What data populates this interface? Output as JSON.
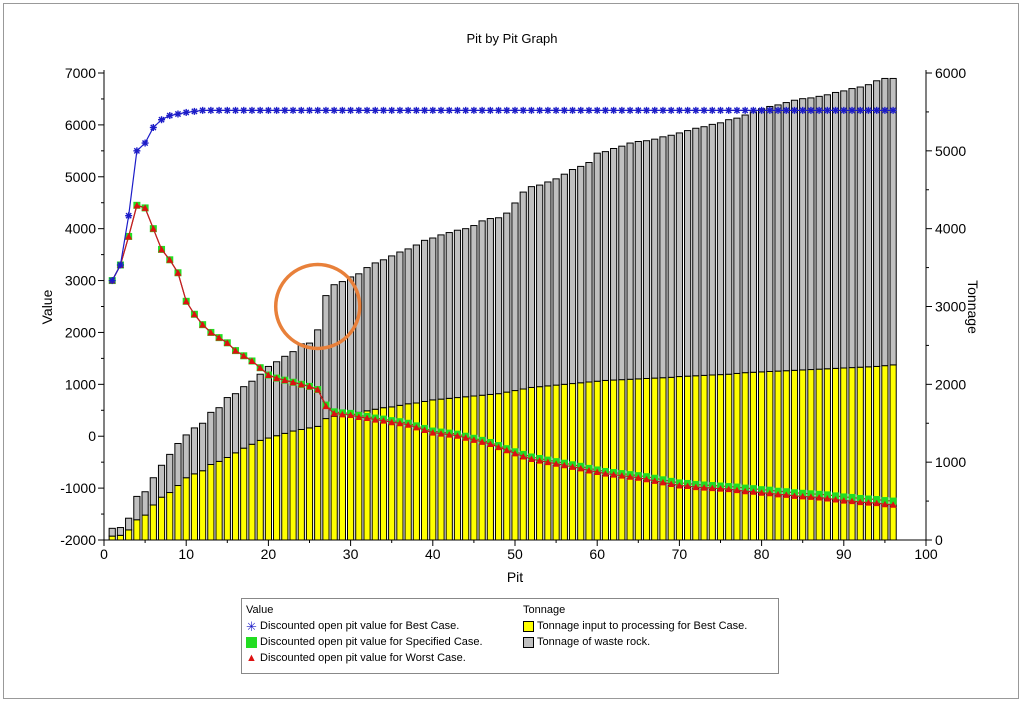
{
  "chart_data": {
    "type": "bar+line",
    "title": "Pit by Pit Graph",
    "xlabel": "Pit",
    "ylabel": "Value",
    "y2label": "Tonnage",
    "xlim": [
      0,
      100
    ],
    "ylim": [
      -2000,
      7000
    ],
    "y2lim": [
      0,
      6000
    ],
    "xticks": [
      "0",
      "10",
      "20",
      "30",
      "40",
      "50",
      "60",
      "70",
      "80",
      "90",
      "100"
    ],
    "yticks": [
      "-2000",
      "-1000",
      "0",
      "1000",
      "2000",
      "3000",
      "4000",
      "5000",
      "6000",
      "7000"
    ],
    "y2ticks": [
      "0",
      "1000",
      "2000",
      "3000",
      "4000",
      "5000",
      "6000"
    ],
    "grid": false,
    "legend_position": "bottom",
    "legend": {
      "value_heading": "Value",
      "tonnage_heading": "Tonnage",
      "best": "Discounted open pit value for Best Case.",
      "specified": "Discounted open pit value for Specified Case.",
      "worst": "Discounted open pit value for Worst Case.",
      "processing": "Tonnage input to processing for Best Case.",
      "waste": "Tonnage of waste rock."
    },
    "colors": {
      "best": "#1c1cc8",
      "specified": "#22dd22",
      "worst": "#dd1111",
      "processing": "#ffff00",
      "waste": "#c0c0c0",
      "annotation": "#e8803a"
    },
    "annotation": {
      "type": "circle",
      "pit": 26,
      "value": 2500
    },
    "pits_count": 96,
    "series": [
      {
        "name": "Discounted open pit value for Best Case.",
        "axis": "left",
        "type": "line",
        "marker": "star",
        "values": [
          3000,
          3300,
          4250,
          5500,
          5650,
          5950,
          6100,
          6180,
          6210,
          6240,
          6260,
          6280,
          6280,
          6280,
          6280,
          6280,
          6280,
          6280,
          6280,
          6280,
          6280,
          6280,
          6280,
          6280,
          6280,
          6280,
          6280,
          6280,
          6280,
          6280,
          6280,
          6280,
          6280,
          6280,
          6280,
          6280,
          6280,
          6280,
          6280,
          6280,
          6280,
          6280,
          6280,
          6280,
          6280,
          6280,
          6280,
          6280,
          6280,
          6280,
          6280,
          6280,
          6280,
          6280,
          6280,
          6280,
          6280,
          6280,
          6280,
          6280,
          6280,
          6280,
          6280,
          6280,
          6280,
          6280,
          6280,
          6280,
          6280,
          6280,
          6280,
          6280,
          6280,
          6280,
          6280,
          6280,
          6280,
          6280,
          6280,
          6280,
          6280,
          6280,
          6280,
          6280,
          6280,
          6280,
          6280,
          6280,
          6280,
          6280,
          6280,
          6280,
          6280,
          6280,
          6280,
          6280
        ]
      },
      {
        "name": "Discounted open pit value for Specified Case.",
        "axis": "left",
        "type": "line",
        "marker": "square",
        "values": [
          3000,
          3300,
          3850,
          4450,
          4400,
          4000,
          3600,
          3400,
          3150,
          2600,
          2350,
          2150,
          2000,
          1900,
          1800,
          1650,
          1550,
          1450,
          1320,
          1180,
          1120,
          1080,
          1040,
          1000,
          960,
          900,
          600,
          470,
          450,
          440,
          400,
          380,
          350,
          330,
          300,
          280,
          250,
          200,
          150,
          100,
          80,
          60,
          40,
          0,
          -40,
          -80,
          -120,
          -180,
          -240,
          -300,
          -350,
          -400,
          -430,
          -460,
          -490,
          -520,
          -550,
          -580,
          -620,
          -650,
          -680,
          -700,
          -720,
          -740,
          -760,
          -780,
          -810,
          -840,
          -870,
          -900,
          -910,
          -930,
          -940,
          -950,
          -960,
          -970,
          -980,
          -1000,
          -1010,
          -1030,
          -1040,
          -1060,
          -1070,
          -1090,
          -1100,
          -1110,
          -1120,
          -1130,
          -1150,
          -1170,
          -1180,
          -1200,
          -1210,
          -1220,
          -1240,
          -1250
        ]
      },
      {
        "name": "Discounted open pit value for Worst Case.",
        "axis": "left",
        "type": "line",
        "marker": "triangle",
        "values": [
          3000,
          3300,
          3850,
          4450,
          4400,
          4000,
          3600,
          3400,
          3150,
          2600,
          2350,
          2150,
          2000,
          1900,
          1800,
          1650,
          1550,
          1450,
          1320,
          1180,
          1120,
          1080,
          1040,
          1000,
          960,
          900,
          580,
          440,
          420,
          410,
          370,
          350,
          320,
          300,
          270,
          250,
          220,
          170,
          120,
          70,
          50,
          30,
          10,
          -30,
          -70,
          -110,
          -150,
          -210,
          -270,
          -330,
          -390,
          -440,
          -470,
          -500,
          -530,
          -560,
          -590,
          -620,
          -660,
          -690,
          -720,
          -740,
          -760,
          -780,
          -800,
          -830,
          -860,
          -890,
          -920,
          -950,
          -960,
          -980,
          -990,
          -1000,
          -1010,
          -1020,
          -1040,
          -1060,
          -1070,
          -1090,
          -1100,
          -1120,
          -1130,
          -1150,
          -1160,
          -1170,
          -1180,
          -1200,
          -1220,
          -1240,
          -1250,
          -1270,
          -1280,
          -1290,
          -1310,
          -1320
        ]
      },
      {
        "name": "Tonnage input to processing for Best Case.",
        "axis": "right",
        "type": "stacked-bar",
        "values": [
          50,
          60,
          130,
          260,
          320,
          450,
          550,
          610,
          700,
          800,
          850,
          890,
          970,
          1010,
          1060,
          1120,
          1180,
          1230,
          1280,
          1310,
          1340,
          1370,
          1400,
          1420,
          1440,
          1460,
          1560,
          1590,
          1600,
          1620,
          1640,
          1660,
          1680,
          1700,
          1710,
          1730,
          1750,
          1760,
          1780,
          1800,
          1810,
          1820,
          1830,
          1840,
          1850,
          1860,
          1870,
          1880,
          1900,
          1920,
          1940,
          1960,
          1970,
          1980,
          1990,
          2000,
          2010,
          2020,
          2030,
          2040,
          2050,
          2055,
          2060,
          2065,
          2070,
          2075,
          2080,
          2085,
          2090,
          2100,
          2105,
          2110,
          2115,
          2120,
          2125,
          2130,
          2140,
          2150,
          2155,
          2160,
          2165,
          2170,
          2175,
          2180,
          2185,
          2190,
          2195,
          2200,
          2205,
          2210,
          2215,
          2220,
          2225,
          2230,
          2240,
          2250
        ]
      },
      {
        "name": "Tonnage of waste rock.",
        "axis": "right",
        "type": "stacked-bar",
        "values": [
          100,
          100,
          150,
          300,
          300,
          350,
          410,
          490,
          540,
          550,
          590,
          610,
          670,
          690,
          770,
          760,
          790,
          810,
          850,
          920,
          950,
          990,
          1020,
          1100,
          1090,
          1240,
          1580,
          1690,
          1720,
          1760,
          1780,
          1840,
          1880,
          1900,
          1940,
          1970,
          1990,
          2030,
          2070,
          2080,
          2110,
          2130,
          2150,
          2160,
          2190,
          2240,
          2260,
          2260,
          2300,
          2410,
          2530,
          2580,
          2590,
          2620,
          2650,
          2700,
          2750,
          2780,
          2820,
          2930,
          2940,
          2975,
          3000,
          3035,
          3050,
          3055,
          3070,
          3095,
          3110,
          3130,
          3155,
          3180,
          3195,
          3220,
          3235,
          3270,
          3280,
          3310,
          3345,
          3380,
          3405,
          3420,
          3445,
          3470,
          3485,
          3490,
          3505,
          3520,
          3545,
          3560,
          3585,
          3600,
          3625,
          3670,
          3690,
          3680
        ]
      }
    ]
  }
}
